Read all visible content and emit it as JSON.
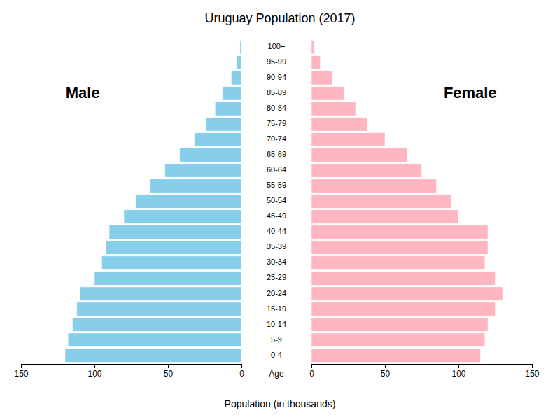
{
  "chart_data": {
    "type": "bar",
    "orientation": "horizontal",
    "title": "Uruguay Population (2017)",
    "xlabel": "Population (in thousands)",
    "ylabel": "Age",
    "categories": [
      "0-4",
      "5-9",
      "10-14",
      "15-19",
      "20-24",
      "25-29",
      "30-34",
      "35-39",
      "40-44",
      "45-49",
      "50-54",
      "55-59",
      "60-64",
      "65-69",
      "70-74",
      "75-79",
      "80-84",
      "85-89",
      "90-94",
      "95-99",
      "100+"
    ],
    "series": [
      {
        "name": "Male",
        "color": "#87CEEB",
        "values": [
          120,
          118,
          115,
          112,
          110,
          100,
          95,
          92,
          90,
          80,
          72,
          62,
          52,
          42,
          32,
          24,
          18,
          13,
          7,
          3,
          1
        ]
      },
      {
        "name": "Female",
        "color": "#FFB6C1",
        "values": [
          115,
          118,
          120,
          125,
          130,
          125,
          118,
          120,
          120,
          100,
          95,
          85,
          75,
          65,
          50,
          38,
          30,
          22,
          14,
          6,
          2
        ]
      }
    ],
    "xlim": [
      0,
      150
    ],
    "xticks": [
      0,
      50,
      100,
      150
    ],
    "grid": false
  }
}
